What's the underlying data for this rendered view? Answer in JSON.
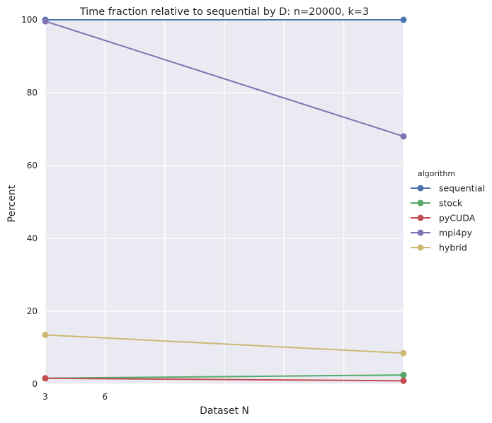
{
  "chart_data": {
    "type": "line",
    "title": "Time fraction relative to sequential by D: n=20000, k=3",
    "xlabel": "Dataset N",
    "ylabel": "Percent",
    "x": [
      3,
      21
    ],
    "xlim": [
      3,
      21
    ],
    "xticks": [
      3,
      6
    ],
    "ylim": [
      0,
      100
    ],
    "yticks": [
      0,
      20,
      40,
      60,
      80,
      100
    ],
    "grid": true,
    "legend": {
      "title": "algorithm",
      "placement": "right"
    },
    "series": [
      {
        "name": "sequential",
        "color": "#4c72b0",
        "values": [
          100,
          100
        ]
      },
      {
        "name": "stock",
        "color": "#55a868",
        "values": [
          1.6,
          2.5
        ]
      },
      {
        "name": "pyCUDA",
        "color": "#c44e52",
        "values": [
          1.6,
          0.9
        ]
      },
      {
        "name": "mpi4py",
        "color": "#8172b2",
        "values": [
          99.6,
          68
        ]
      },
      {
        "name": "hybrid",
        "color": "#ccb974",
        "values": [
          13.5,
          8.5
        ]
      }
    ]
  }
}
